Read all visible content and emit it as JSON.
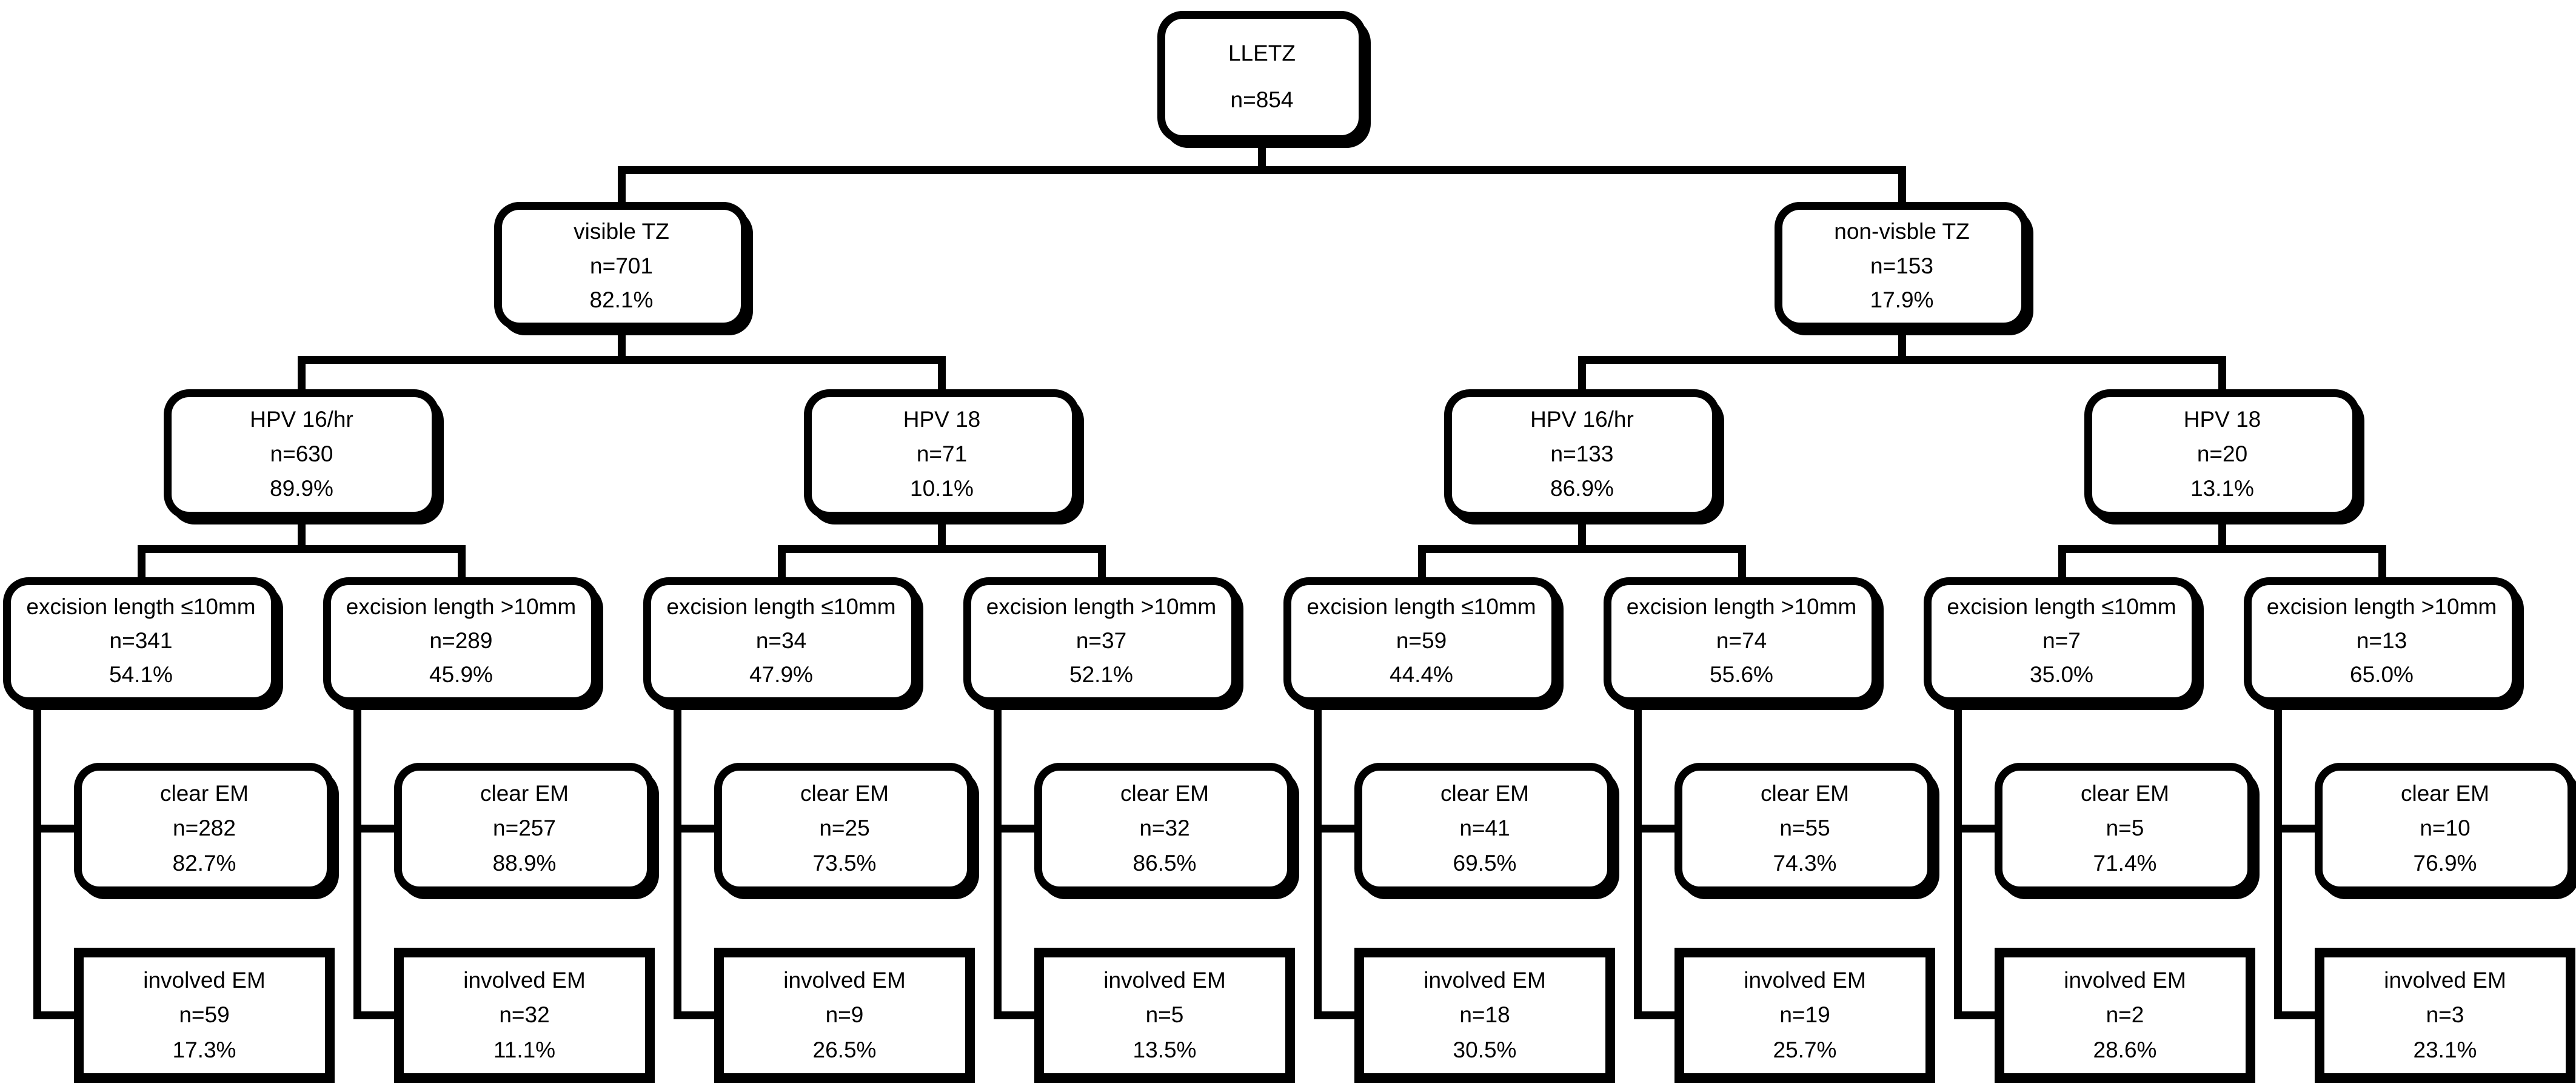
{
  "colors": {
    "line": "#000000",
    "background": "#ffffff",
    "text": "#000000"
  },
  "nodes": [
    {
      "id": "lletz",
      "lines": [
        "LLETZ",
        "n=854"
      ]
    },
    {
      "id": "visible-tz",
      "lines": [
        "visible TZ",
        "n=701",
        "82.1%"
      ]
    },
    {
      "id": "nonvisible-tz",
      "lines": [
        "non-visble TZ",
        "n=153",
        "17.9%"
      ]
    },
    {
      "id": "hpv16-visible",
      "lines": [
        "HPV 16/hr",
        "n=630",
        "89.9%"
      ]
    },
    {
      "id": "hpv18-visible",
      "lines": [
        "HPV 18",
        "n=71",
        "10.1%"
      ]
    },
    {
      "id": "hpv16-nonvisible",
      "lines": [
        "HPV 16/hr",
        "n=133",
        "86.9%"
      ]
    },
    {
      "id": "hpv18-nonvisible",
      "lines": [
        "HPV 18",
        "n=20",
        "13.1%"
      ]
    },
    {
      "id": "excision-le10-col1",
      "lines": [
        "excision length ≤10mm",
        "n=341",
        "54.1%"
      ]
    },
    {
      "id": "excision-gt10-col2",
      "lines": [
        "excision length >10mm",
        "n=289",
        "45.9%"
      ]
    },
    {
      "id": "excision-le10-col3",
      "lines": [
        "excision length ≤10mm",
        "n=34",
        "47.9%"
      ]
    },
    {
      "id": "excision-gt10-col4",
      "lines": [
        "excision length >10mm",
        "n=37",
        "52.1%"
      ]
    },
    {
      "id": "excision-le10-col5",
      "lines": [
        "excision length ≤10mm",
        "n=59",
        "44.4%"
      ]
    },
    {
      "id": "excision-gt10-col6",
      "lines": [
        "excision length >10mm",
        "n=74",
        "55.6%"
      ]
    },
    {
      "id": "excision-le10-col7",
      "lines": [
        "excision length ≤10mm",
        "n=7",
        "35.0%"
      ]
    },
    {
      "id": "excision-gt10-col8",
      "lines": [
        "excision length >10mm",
        "n=13",
        "65.0%"
      ]
    },
    {
      "id": "clear-em-col1",
      "lines": [
        "clear EM",
        "n=282",
        "82.7%"
      ]
    },
    {
      "id": "clear-em-col2",
      "lines": [
        "clear EM",
        "n=257",
        "88.9%"
      ]
    },
    {
      "id": "clear-em-col3",
      "lines": [
        "clear EM",
        "n=25",
        "73.5%"
      ]
    },
    {
      "id": "clear-em-col4",
      "lines": [
        "clear EM",
        "n=32",
        "86.5%"
      ]
    },
    {
      "id": "clear-em-col5",
      "lines": [
        "clear EM",
        "n=41",
        "69.5%"
      ]
    },
    {
      "id": "clear-em-col6",
      "lines": [
        "clear EM",
        "n=55",
        "74.3%"
      ]
    },
    {
      "id": "clear-em-col7",
      "lines": [
        "clear EM",
        "n=5",
        "71.4%"
      ]
    },
    {
      "id": "clear-em-col8",
      "lines": [
        "clear EM",
        "n=10",
        "76.9%"
      ]
    },
    {
      "id": "involved-em-col1",
      "lines": [
        "involved EM",
        "n=59",
        "17.3%"
      ]
    },
    {
      "id": "involved-em-col2",
      "lines": [
        "involved EM",
        "n=32",
        "11.1%"
      ]
    },
    {
      "id": "involved-em-col3",
      "lines": [
        "involved EM",
        "n=9",
        "26.5%"
      ]
    },
    {
      "id": "involved-em-col4",
      "lines": [
        "involved EM",
        "n=5",
        "13.5%"
      ]
    },
    {
      "id": "involved-em-col5",
      "lines": [
        "involved EM",
        "n=18",
        "30.5%"
      ]
    },
    {
      "id": "involved-em-col6",
      "lines": [
        "involved EM",
        "n=19",
        "25.7%"
      ]
    },
    {
      "id": "involved-em-col7",
      "lines": [
        "involved EM",
        "n=2",
        "28.6%"
      ]
    },
    {
      "id": "involved-em-col8",
      "lines": [
        "involved EM",
        "n=3",
        "23.1%"
      ]
    }
  ]
}
